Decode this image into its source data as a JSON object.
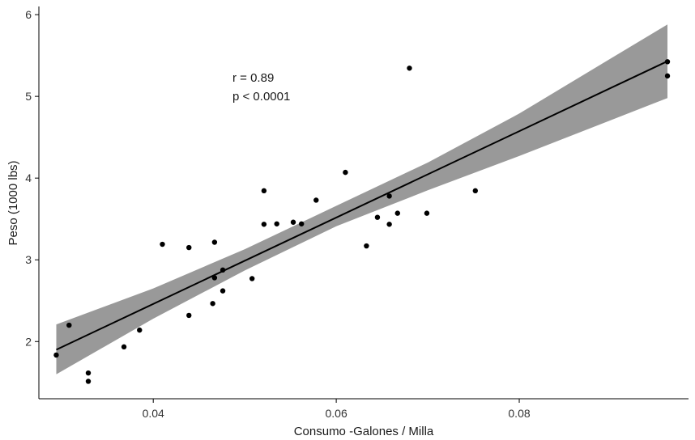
{
  "chart_data": {
    "type": "scatter",
    "title": "",
    "xlabel": "Consumo  -Galones / Milla",
    "ylabel": "Peso  (1000 lbs)",
    "xlim": [
      0.0275,
      0.0985
    ],
    "ylim": [
      1.3,
      6.1
    ],
    "x_ticks": [
      0.04,
      0.06,
      0.08
    ],
    "x_tick_labels": [
      "0.04",
      "0.06",
      "0.08"
    ],
    "y_ticks": [
      2,
      3,
      4,
      5,
      6
    ],
    "y_tick_labels": [
      "2",
      "3",
      "4",
      "5",
      "6"
    ],
    "grid": false,
    "legend": "none",
    "annotations": [
      "r = 0.89",
      "p < 0.0001"
    ],
    "points": [
      {
        "x": 0.0294,
        "y": 1.835
      },
      {
        "x": 0.0308,
        "y": 2.2
      },
      {
        "x": 0.0329,
        "y": 1.615
      },
      {
        "x": 0.0329,
        "y": 1.513
      },
      {
        "x": 0.0368,
        "y": 1.935
      },
      {
        "x": 0.0385,
        "y": 2.14
      },
      {
        "x": 0.041,
        "y": 3.19
      },
      {
        "x": 0.0439,
        "y": 3.15
      },
      {
        "x": 0.0439,
        "y": 2.32
      },
      {
        "x": 0.0465,
        "y": 2.465
      },
      {
        "x": 0.0467,
        "y": 3.215
      },
      {
        "x": 0.0467,
        "y": 2.78
      },
      {
        "x": 0.0476,
        "y": 2.875
      },
      {
        "x": 0.0476,
        "y": 2.62
      },
      {
        "x": 0.0508,
        "y": 2.77
      },
      {
        "x": 0.0521,
        "y": 3.845
      },
      {
        "x": 0.0521,
        "y": 3.435
      },
      {
        "x": 0.0535,
        "y": 3.44
      },
      {
        "x": 0.0553,
        "y": 3.46
      },
      {
        "x": 0.0562,
        "y": 3.44
      },
      {
        "x": 0.0578,
        "y": 3.73
      },
      {
        "x": 0.061,
        "y": 4.07
      },
      {
        "x": 0.0633,
        "y": 3.17
      },
      {
        "x": 0.0645,
        "y": 3.52
      },
      {
        "x": 0.0658,
        "y": 3.78
      },
      {
        "x": 0.0658,
        "y": 3.435
      },
      {
        "x": 0.0667,
        "y": 3.57
      },
      {
        "x": 0.068,
        "y": 5.345
      },
      {
        "x": 0.0699,
        "y": 3.57
      },
      {
        "x": 0.0752,
        "y": 3.845
      },
      {
        "x": 0.0962,
        "y": 5.424
      },
      {
        "x": 0.0962,
        "y": 5.25
      }
    ],
    "fit_line": {
      "x": [
        0.0294,
        0.0962
      ],
      "y": [
        1.9,
        5.43
      ]
    },
    "confidence_band": {
      "x": [
        0.0294,
        0.04,
        0.05,
        0.06,
        0.07,
        0.08,
        0.0962
      ],
      "lower": [
        1.6,
        2.28,
        2.87,
        3.41,
        3.85,
        4.27,
        4.98
      ],
      "upper": [
        2.21,
        2.65,
        3.13,
        3.66,
        4.19,
        4.79,
        5.88
      ]
    },
    "colors": {
      "points": "#000000",
      "line": "#000000",
      "band": "#999999",
      "axis": "#000000",
      "text": "#1a1a1a"
    }
  }
}
